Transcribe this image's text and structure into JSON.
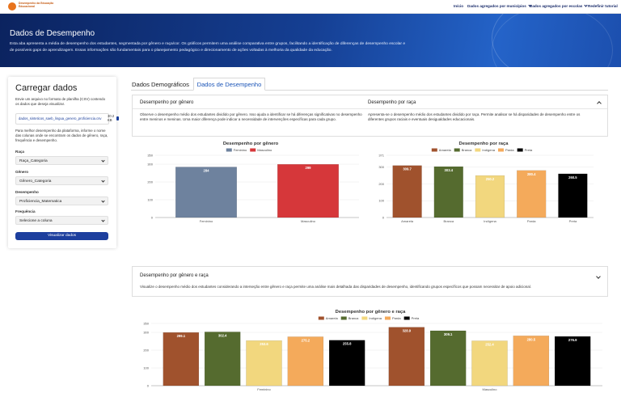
{
  "nav": {
    "logo": "Desempenho da Educação Educacional",
    "links": [
      "Início",
      "Dados agregados por municípios",
      "Dados agregados por escolas",
      "Redefinir tutorial"
    ]
  },
  "banner": {
    "title": "Dados de Desempenho",
    "description": "Esta aba apresenta a média de desempenho dos estudantes, segmentada por gênero e raça/cor. Os gráficos permitem uma análise comparativa entre grupos, facilitando a identificação de diferenças de desempenho escolar e de possíveis gaps de aprendizagem. Essas informações são fundamentais para o planejamento pedagógico e direcionamento de ações voltadas à melhoria da qualidade da educação."
  },
  "upload": {
    "title": "Carregar dados",
    "instruction": "Envie um arquivo no formato de planilha (CSV) contendo os dados que deseja visualizar.",
    "file_name": "dados_sinteticos_saeb_lingua_genero_proficiencia.csv",
    "file_size": "30.2 KB",
    "note": "Para melhor desempenho da plataforma, informe o nome das colunas onde se encontram os dados de gênero, raça, frequência e desempenho.",
    "fields": [
      {
        "label": "Raça",
        "value": "Raça_Categoria"
      },
      {
        "label": "Gênero",
        "value": "Gênero_Categoria"
      },
      {
        "label": "Desempenho",
        "value": "Proficiencia_Matematica"
      },
      {
        "label": "Frequência",
        "value": "Selecione a coluna"
      }
    ],
    "button": "Visualizar dados"
  },
  "tabs": [
    "Dados Demográficos",
    "Dados de Desempenho"
  ],
  "sections": [
    {
      "headers": [
        "Desempenho por gênero",
        "Desempenho por raça"
      ],
      "descriptions": [
        "Observe o desempenho médio dos estudantes dividido por gênero. Isso ajuda a identificar se há diferenças significativas no desempenho entre meninos e meninas. Uma maior diferença pode indicar a necessidade de intervenções específicas para cada grupo.",
        "Apresenta-se o desempenho médio dos estudantes dividido por raça. Permite analisar se há disparidades de desempenho entre os diferentes grupos raciais e eventuais desigualdades educacionais."
      ]
    },
    {
      "headers": [
        "Desempenho por gênero e raça"
      ],
      "descriptions": [
        "Visualize o desempenho médio dos estudantes considerando a interseção entre gênero e raça permite uma análise mais detalhada das disparidades de desempenho, identificando grupos específicos que possam necessitar de apoio adicional."
      ]
    }
  ],
  "charts": [
    {
      "type": "bar",
      "title": "Desempenho por gênero",
      "categories": [
        "Feminino",
        "Masculino"
      ],
      "values": [
        284,
        299
      ],
      "colors": [
        "#6e829e",
        "#d6373a"
      ],
      "ylim": [
        0,
        350
      ],
      "yticks": [
        0,
        100,
        200,
        300,
        350
      ],
      "grid": true
    },
    {
      "type": "bar",
      "title": "Desempenho por raça",
      "categories": [
        "Amarela",
        "Branca",
        "Indígena",
        "Parda",
        "Preta"
      ],
      "values": [
        309.7,
        303.4,
        250.2,
        280.4,
        260.5
      ],
      "colors": [
        "#a0522d",
        "#556b2f",
        "#f2d77e",
        "#f4aa5b",
        "#000000"
      ],
      "ylim": [
        0,
        371
      ],
      "yticks": [
        0,
        100,
        200,
        300,
        371
      ],
      "grid": true
    },
    {
      "type": "grouped_bar",
      "title": "Desempenho por gênero e raça",
      "categories": [
        "Feminino",
        "Masculino"
      ],
      "series": [
        {
          "name": "Amarela",
          "color": "#a0522d",
          "values": [
            299.1,
            328.9
          ]
        },
        {
          "name": "Branca",
          "color": "#556b2f",
          "values": [
            302.4,
            309.1
          ]
        },
        {
          "name": "Indígena",
          "color": "#f2d77e",
          "values": [
            253.6,
            252.4
          ]
        },
        {
          "name": "Parda",
          "color": "#f4aa5b",
          "values": [
            275.2,
            280.5
          ]
        },
        {
          "name": "Preta",
          "color": "#000000",
          "values": [
            255.8,
            276.9
          ]
        }
      ],
      "ylim": [
        0,
        350
      ],
      "yticks": [
        0,
        100,
        200,
        300,
        350
      ],
      "grid": true
    }
  ]
}
